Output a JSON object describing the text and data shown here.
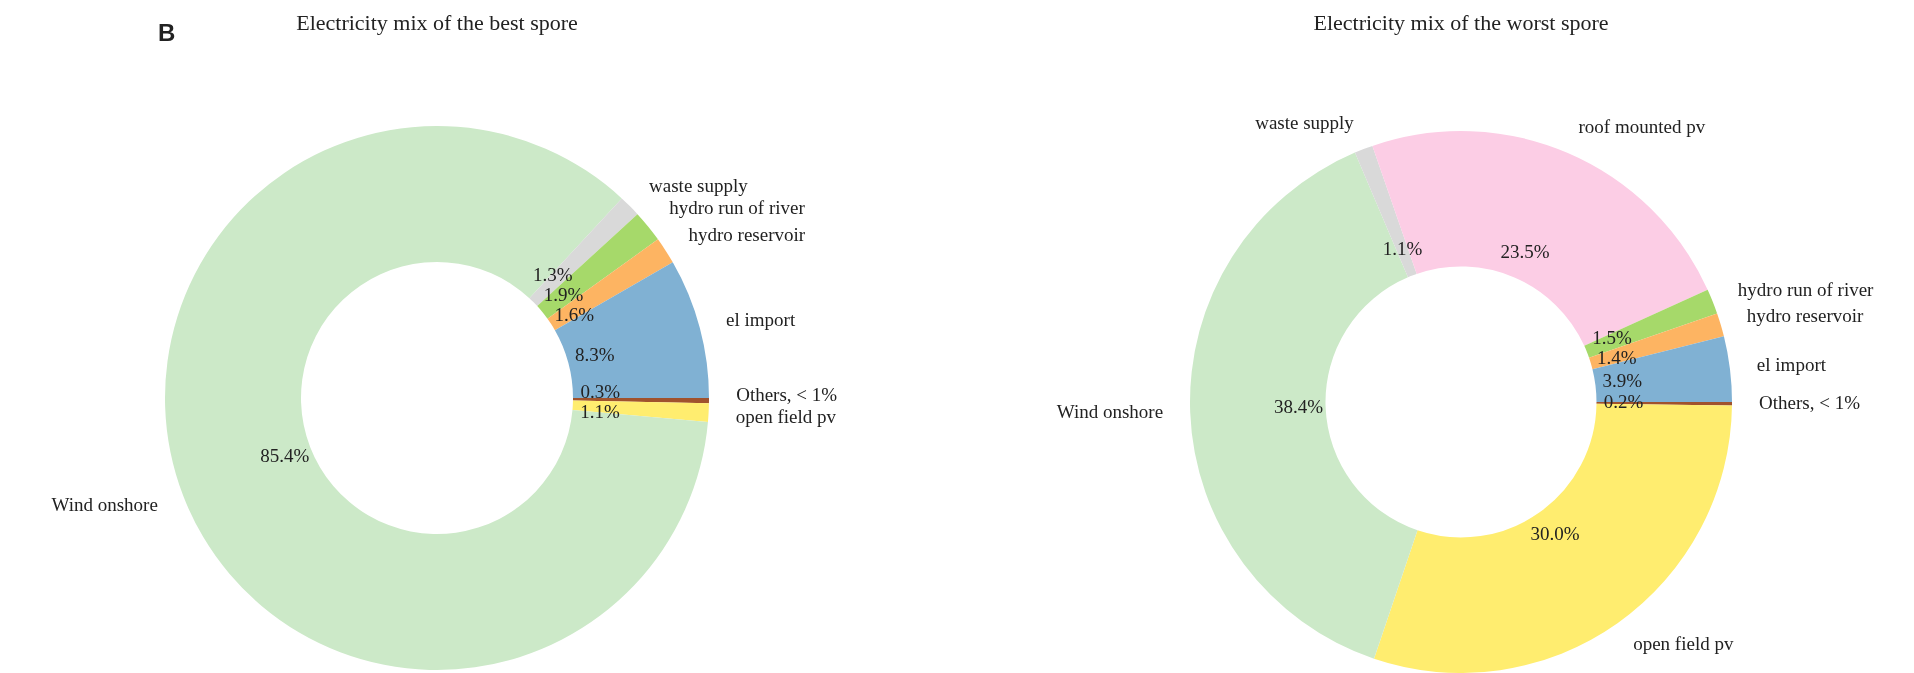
{
  "chart_data": [
    {
      "type": "donut",
      "title": "Electricity mix of the best spore",
      "annotations": [
        "B"
      ],
      "categories": [
        "Others, < 1%",
        "open field pv",
        "Wind onshore",
        "waste supply",
        "hydro run of river",
        "hydro reservoir",
        "el import"
      ],
      "values": [
        0.3,
        1.1,
        85.4,
        1.3,
        1.9,
        1.6,
        8.3
      ],
      "value_labels": [
        "0.3%",
        "1.1%",
        "85.4%",
        "1.3%",
        "1.9%",
        "1.6%",
        "8.3%"
      ],
      "colors": [
        "#a0522d",
        "#ffed6f",
        "#cce9c8",
        "#d9d9d9",
        "#a6d96a",
        "#fdb462",
        "#80b1d3"
      ]
    },
    {
      "type": "donut",
      "title": "Electricity mix of the worst spore",
      "categories": [
        "Others, < 1%",
        "open field pv",
        "Wind onshore",
        "waste supply",
        "roof mounted pv",
        "hydro run of river",
        "hydro reservoir",
        "el import"
      ],
      "values": [
        0.2,
        30.0,
        38.4,
        1.1,
        23.5,
        1.5,
        1.4,
        3.9
      ],
      "value_labels": [
        "0.2%",
        "30.0%",
        "38.4%",
        "1.1%",
        "23.5%",
        "1.5%",
        "1.4%",
        "3.9%"
      ],
      "colors": [
        "#a0522d",
        "#ffed6f",
        "#cce9c8",
        "#d9d9d9",
        "#fccde5",
        "#a6d96a",
        "#fdb462",
        "#80b1d3"
      ]
    }
  ]
}
